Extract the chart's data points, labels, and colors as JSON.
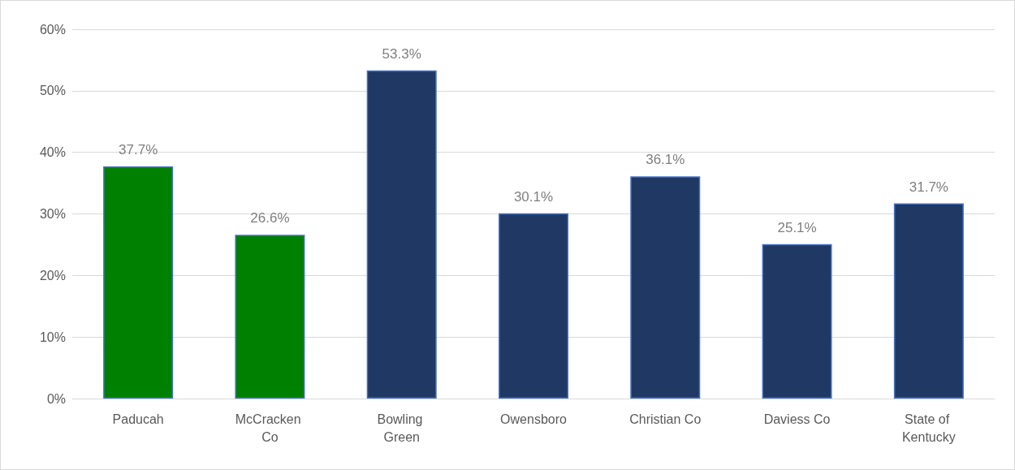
{
  "chart_data": {
    "type": "bar",
    "categories": [
      "Paducah",
      "McCracken Co",
      "Bowling Green",
      "Owensboro",
      "Christian Co",
      "Daviess Co",
      "State of Kentucky"
    ],
    "values": [
      37.7,
      26.6,
      53.3,
      30.1,
      36.1,
      25.1,
      31.7
    ],
    "colors": [
      "#008000",
      "#008000",
      "#1f3864",
      "#1f3864",
      "#1f3864",
      "#1f3864",
      "#1f3864"
    ],
    "value_labels": [
      "37.7%",
      "26.6%",
      "53.3%",
      "30.1%",
      "36.1%",
      "25.1%",
      "31.7%"
    ],
    "ylim": [
      0,
      60
    ],
    "yticks": [
      {
        "value": 0,
        "label": "0%"
      },
      {
        "value": 10,
        "label": "10%"
      },
      {
        "value": 20,
        "label": "20%"
      },
      {
        "value": 30,
        "label": "30%"
      },
      {
        "value": 40,
        "label": "40%"
      },
      {
        "value": 50,
        "label": "50%"
      },
      {
        "value": 60,
        "label": "60%"
      }
    ],
    "grid": "y"
  }
}
